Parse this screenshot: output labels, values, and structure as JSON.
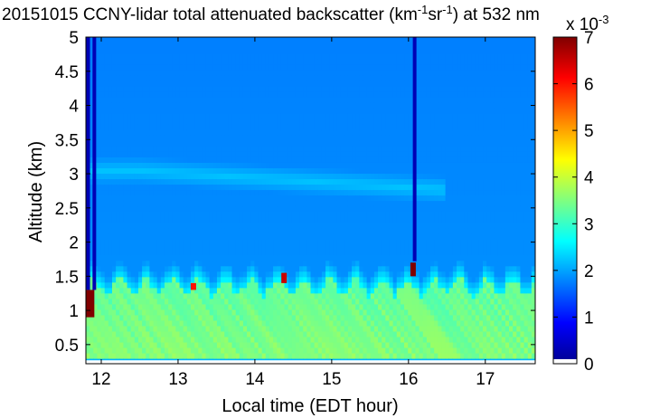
{
  "chart_data": {
    "type": "heatmap",
    "title": {
      "prefix": "20151015 CCNY-lidar total attenuated backscatter (km",
      "exp1": "-1",
      "mid": "sr",
      "exp2": "-1",
      "suffix": ") at 532 nm"
    },
    "xlabel": "Local time (EDT hour)",
    "ylabel": "Altitude (km)",
    "xlim": [
      11.8,
      17.65
    ],
    "ylim": [
      0.22,
      5.0
    ],
    "xticks": [
      12,
      13,
      14,
      15,
      16,
      17
    ],
    "yticks": [
      0.5,
      1,
      1.5,
      2,
      2.5,
      3,
      3.5,
      4,
      4.5,
      5
    ],
    "colorbar": {
      "ticks": [
        0,
        1,
        2,
        3,
        4,
        5,
        6,
        7
      ],
      "multiplier_label": "x 10",
      "multiplier_exponent": "-3",
      "colormap": "jet"
    },
    "features": {
      "background_value": 1.9,
      "aerosol_layer_top_km": 1.3,
      "aerosol_layer_value": 3.4,
      "elevated_layer_km": [
        2.8,
        3.3
      ],
      "cloud_events": [
        {
          "time": 11.83,
          "altitude_km": [
            0.9,
            1.3
          ],
          "value": 7
        },
        {
          "time": 16.06,
          "altitude_km": [
            1.5,
            1.7
          ],
          "value": 7
        },
        {
          "time": 14.38,
          "altitude_km": [
            1.4,
            1.55
          ],
          "value": 6.5
        },
        {
          "time": 13.2,
          "altitude_km": [
            1.3,
            1.4
          ],
          "value": 6
        }
      ],
      "signal_dropouts": [
        11.83,
        11.91,
        16.08
      ]
    }
  }
}
